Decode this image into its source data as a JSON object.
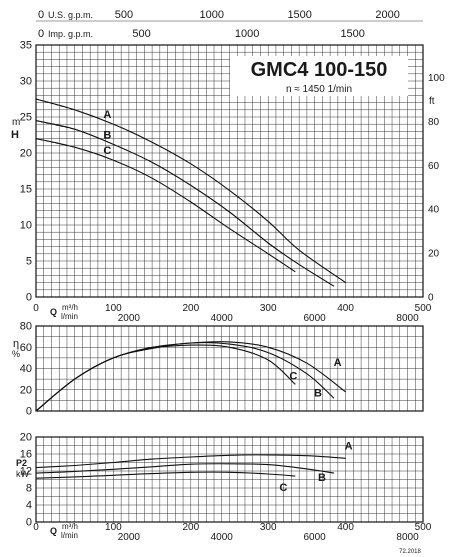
{
  "chart_data": {
    "type": "line",
    "title": "GMC4 100-150",
    "subtitle": "n ≈ 1450 1/min",
    "footer_code": "72.2018",
    "top_axes": {
      "usgpm": {
        "label": "U.S. g.p.m.",
        "ticks": [
          0,
          500,
          1000,
          1500,
          2000
        ]
      },
      "impgpm": {
        "label": "Imp. g.p.m.",
        "ticks": [
          0,
          500,
          1000,
          1500
        ]
      }
    },
    "flow_axis": {
      "q_label": "Q",
      "m3h_unit": "m³/h",
      "m3h_ticks": [
        0,
        100,
        200,
        300,
        400,
        500
      ],
      "m3h_range": [
        0,
        500
      ],
      "lmin_unit": "l/min",
      "lmin_ticks": [
        0,
        2000,
        4000,
        6000,
        8000
      ]
    },
    "head": {
      "y_label_h": "H",
      "y_unit_m": "m",
      "y_unit_ft": "ft",
      "ylim": [
        0,
        35
      ],
      "y_ticks": [
        0,
        5,
        10,
        15,
        20,
        25,
        30,
        35
      ],
      "ft_ticks": [
        0,
        20,
        40,
        60,
        80,
        100
      ],
      "series": [
        {
          "name": "A",
          "x": [
            0,
            50,
            100,
            150,
            200,
            250,
            300,
            340,
            400
          ],
          "y": [
            27.5,
            26.0,
            24.0,
            21.5,
            18.5,
            14.8,
            10.5,
            6.5,
            2.0
          ]
        },
        {
          "name": "B",
          "x": [
            0,
            50,
            100,
            150,
            200,
            250,
            300,
            340,
            385
          ],
          "y": [
            24.5,
            23.3,
            21.2,
            18.7,
            15.5,
            11.8,
            7.5,
            4.5,
            1.5
          ]
        },
        {
          "name": "C",
          "x": [
            0,
            50,
            100,
            150,
            200,
            250,
            300,
            335
          ],
          "y": [
            22.0,
            20.8,
            19.0,
            16.5,
            13.2,
            9.5,
            6.0,
            3.5
          ]
        }
      ]
    },
    "efficiency": {
      "y_label": "η",
      "y_unit": "%",
      "ylim": [
        0,
        80
      ],
      "y_ticks": [
        0,
        20,
        40,
        60,
        80
      ],
      "series": [
        {
          "name": "A",
          "x": [
            0,
            50,
            100,
            150,
            200,
            250,
            300,
            350,
            400
          ],
          "y": [
            0,
            30,
            50,
            60,
            64,
            65,
            60,
            45,
            18
          ]
        },
        {
          "name": "B",
          "x": [
            0,
            50,
            100,
            150,
            200,
            250,
            300,
            350,
            385
          ],
          "y": [
            0,
            30,
            50,
            59,
            64,
            63,
            55,
            35,
            12
          ]
        },
        {
          "name": "C",
          "x": [
            0,
            50,
            100,
            150,
            200,
            250,
            300,
            335
          ],
          "y": [
            0,
            30,
            50,
            59,
            62,
            60,
            48,
            25
          ]
        }
      ]
    },
    "power": {
      "y_label": "P2",
      "y_unit": "kW",
      "ylim": [
        0,
        20
      ],
      "y_ticks": [
        0,
        4,
        8,
        12,
        16,
        20
      ],
      "series": [
        {
          "name": "A",
          "x": [
            0,
            50,
            100,
            150,
            200,
            250,
            300,
            350,
            400
          ],
          "y": [
            12.8,
            13.3,
            14.0,
            14.8,
            15.3,
            15.7,
            15.8,
            15.6,
            15.0
          ]
        },
        {
          "name": "B",
          "x": [
            0,
            50,
            100,
            150,
            200,
            250,
            300,
            350,
            385
          ],
          "y": [
            11.5,
            11.9,
            12.4,
            13.0,
            13.6,
            13.7,
            13.5,
            12.5,
            11.5
          ]
        },
        {
          "name": "C",
          "x": [
            0,
            50,
            100,
            150,
            200,
            250,
            300,
            335
          ],
          "y": [
            10.3,
            10.6,
            11.0,
            11.4,
            11.7,
            11.7,
            11.3,
            10.8
          ]
        }
      ]
    }
  }
}
